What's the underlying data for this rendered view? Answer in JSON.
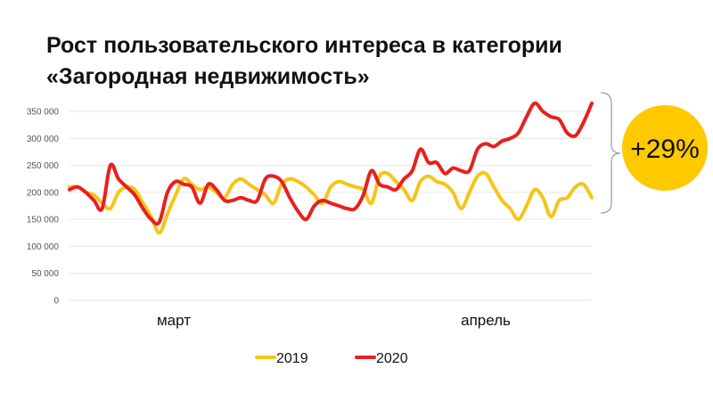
{
  "title": {
    "line1": "Рост пользовательского интереса в категории",
    "line2": "«Загородная недвижимость»"
  },
  "badge": {
    "text": "+29%",
    "color": "#FFC900"
  },
  "chart_data": {
    "type": "line",
    "title": "Рост пользовательского интереса в категории «Загородная недвижимость»",
    "ylim": [
      0,
      350000
    ],
    "yticks": [
      0,
      50000,
      100000,
      150000,
      200000,
      250000,
      300000,
      350000
    ],
    "ytick_labels": [
      "0",
      "50 000",
      "100 000",
      "150 000",
      "200 000",
      "250 000",
      "300 000",
      "350 000"
    ],
    "x_period_labels": [
      "март",
      "апрель"
    ],
    "grid": true,
    "legend_position": "bottom",
    "series": [
      {
        "name": "2019",
        "color": "#F5C518",
        "values": [
          210000,
          210000,
          200000,
          195000,
          180000,
          170000,
          200000,
          210000,
          205000,
          180000,
          155000,
          125000,
          160000,
          195000,
          225000,
          215000,
          205000,
          210000,
          200000,
          190000,
          215000,
          225000,
          215000,
          205000,
          195000,
          180000,
          215000,
          225000,
          220000,
          210000,
          195000,
          180000,
          210000,
          220000,
          215000,
          210000,
          205000,
          180000,
          230000,
          235000,
          220000,
          205000,
          185000,
          220000,
          230000,
          220000,
          215000,
          200000,
          170000,
          200000,
          230000,
          235000,
          210000,
          185000,
          170000,
          150000,
          175000,
          205000,
          190000,
          155000,
          185000,
          190000,
          210000,
          215000,
          190000
        ]
      },
      {
        "name": "2020",
        "color": "#E8201E",
        "values": [
          205000,
          210000,
          200000,
          185000,
          170000,
          250000,
          225000,
          210000,
          195000,
          170000,
          150000,
          145000,
          200000,
          220000,
          215000,
          210000,
          180000,
          215000,
          205000,
          185000,
          185000,
          190000,
          185000,
          185000,
          225000,
          230000,
          220000,
          190000,
          165000,
          150000,
          175000,
          185000,
          180000,
          175000,
          170000,
          170000,
          195000,
          240000,
          215000,
          210000,
          205000,
          225000,
          240000,
          280000,
          255000,
          255000,
          235000,
          245000,
          240000,
          240000,
          280000,
          290000,
          285000,
          295000,
          300000,
          310000,
          340000,
          365000,
          350000,
          340000,
          335000,
          310000,
          305000,
          330000,
          365000
        ]
      }
    ]
  }
}
